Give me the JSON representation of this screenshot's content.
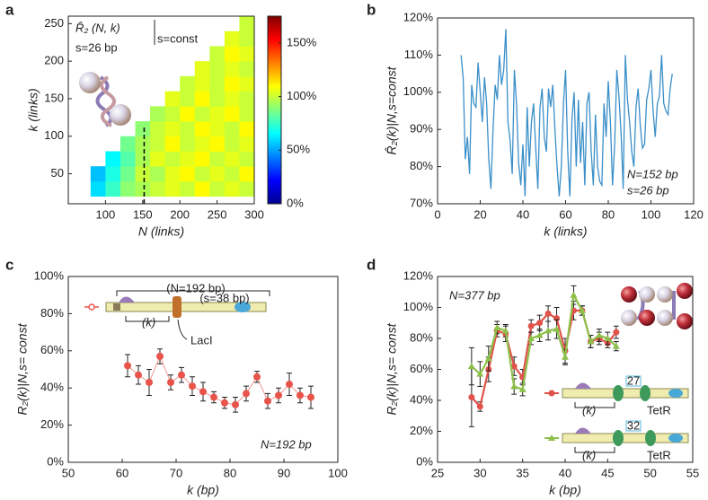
{
  "chart_data": [
    {
      "type": "heatmap",
      "panel": "a",
      "xlabel": "N (links)",
      "ylabel": "k (links)",
      "annotations": [
        "R̂₂ (N, k)",
        "s=const",
        "s=26 bp"
      ],
      "x": [
        90,
        110,
        130,
        150,
        170,
        190,
        210,
        230,
        250,
        270,
        290
      ],
      "y": [
        30,
        50,
        70,
        90,
        110,
        130,
        150,
        170,
        190,
        210,
        230,
        250
      ],
      "z": [
        [
          60,
          75,
          90,
          95,
          100,
          105,
          100,
          110,
          100,
          105,
          100
        ],
        [
          55,
          70,
          85,
          100,
          95,
          105,
          110,
          100,
          105,
          100,
          110
        ],
        [
          null,
          65,
          80,
          95,
          105,
          100,
          105,
          110,
          100,
          105,
          100
        ],
        [
          null,
          null,
          85,
          95,
          100,
          110,
          100,
          105,
          110,
          100,
          105
        ],
        [
          null,
          null,
          null,
          90,
          100,
          105,
          100,
          110,
          105,
          100,
          110
        ],
        [
          null,
          null,
          null,
          null,
          95,
          100,
          110,
          100,
          105,
          110,
          100
        ],
        [
          null,
          null,
          null,
          null,
          null,
          105,
          100,
          110,
          100,
          105,
          100
        ],
        [
          null,
          null,
          null,
          null,
          null,
          null,
          100,
          105,
          100,
          110,
          105
        ],
        [
          null,
          null,
          null,
          null,
          null,
          null,
          null,
          105,
          100,
          105,
          100
        ],
        [
          null,
          null,
          null,
          null,
          null,
          null,
          null,
          null,
          100,
          110,
          105
        ],
        [
          null,
          null,
          null,
          null,
          null,
          null,
          null,
          null,
          null,
          105,
          100
        ],
        [
          null,
          null,
          null,
          null,
          null,
          null,
          null,
          null,
          null,
          null,
          100
        ]
      ],
      "colormap": "jet",
      "vline": 152,
      "xlim": [
        50,
        300
      ],
      "xticks": [
        100,
        150,
        200,
        250,
        300
      ],
      "ylim": [
        10,
        260
      ],
      "yticks": [
        50,
        100,
        150,
        200,
        250
      ],
      "clim": [
        0,
        175
      ],
      "cticks": [
        {
          "value": 0,
          "label": "0%"
        },
        {
          "value": 50,
          "label": "50%"
        },
        {
          "value": 100,
          "label": "100%"
        },
        {
          "value": 150,
          "label": "150%"
        }
      ]
    },
    {
      "type": "line",
      "panel": "b",
      "xlabel": "k (links)",
      "ylabel": "R̂₂(k)|N,s=const",
      "annotations": [
        "N=152 bp",
        "s=26 bp"
      ],
      "x": [
        11,
        12,
        13,
        14,
        15,
        16,
        17,
        18,
        19,
        20,
        21,
        22,
        23,
        24,
        25,
        26,
        27,
        28,
        29,
        30,
        31,
        32,
        33,
        34,
        35,
        36,
        37,
        38,
        39,
        40,
        41,
        42,
        43,
        44,
        45,
        46,
        47,
        48,
        49,
        50,
        51,
        52,
        53,
        54,
        55,
        56,
        57,
        58,
        59,
        60,
        61,
        62,
        63,
        64,
        65,
        66,
        67,
        68,
        69,
        70,
        71,
        72,
        73,
        74,
        75,
        76,
        77,
        78,
        79,
        80,
        81,
        82,
        83,
        84,
        85,
        86,
        87,
        88,
        89,
        90,
        91,
        92,
        93,
        94,
        95,
        96,
        97,
        98,
        99,
        100,
        101,
        102,
        103,
        104,
        105,
        106,
        107,
        108,
        109,
        110
      ],
      "series": [
        {
          "color": "#3b8fc9",
          "values": [
            110,
            104,
            82,
            88,
            78,
            102,
            97,
            96,
            108,
            100,
            92,
            104,
            97,
            82,
            74,
            90,
            102,
            98,
            110,
            102,
            106,
            117,
            92,
            87,
            78,
            106,
            97,
            81,
            75,
            86,
            72,
            96,
            80,
            92,
            97,
            85,
            74,
            96,
            101,
            88,
            84,
            101,
            96,
            102,
            90,
            80,
            72,
            80,
            97,
            106,
            84,
            72,
            93,
            100,
            80,
            98,
            81,
            92,
            75,
            97,
            100,
            84,
            75,
            94,
            80,
            76,
            75,
            97,
            88,
            103,
            92,
            75,
            86,
            106,
            99,
            89,
            74,
            110,
            98,
            92,
            84,
            80,
            96,
            101,
            91,
            85,
            86,
            98,
            101,
            106,
            95,
            88,
            97,
            99,
            110,
            97,
            95,
            94,
            101,
            105
          ]
        }
      ],
      "xlim": [
        0,
        120
      ],
      "xticks": [
        0,
        20,
        40,
        60,
        80,
        100,
        120
      ],
      "ylim": [
        70,
        120
      ],
      "yticks": [
        {
          "value": 70,
          "label": "70%"
        },
        {
          "value": 80,
          "label": "80%"
        },
        {
          "value": 90,
          "label": "90%"
        },
        {
          "value": 100,
          "label": "100%"
        },
        {
          "value": 110,
          "label": "110%"
        },
        {
          "value": 120,
          "label": "120%"
        }
      ]
    },
    {
      "type": "scatter",
      "panel": "c",
      "xlabel": "k (bp)",
      "ylabel": "R₂(k)|N,s= const",
      "annotations": [
        "N=192 bp",
        "(N=192 bp)",
        "(s=38 bp)",
        "(k)",
        "LacI"
      ],
      "x": [
        61,
        63,
        65,
        67,
        69,
        71,
        73,
        75,
        77,
        79,
        81,
        83,
        85,
        87,
        89,
        91,
        93,
        95
      ],
      "values": [
        52,
        47,
        43,
        57,
        43,
        47,
        41,
        38,
        35,
        32,
        31,
        37,
        46,
        33,
        36,
        42,
        36,
        35
      ],
      "errors": [
        6,
        5,
        7,
        4,
        4,
        4,
        5,
        5,
        3,
        3,
        4,
        4,
        3,
        4,
        4,
        6,
        4,
        6
      ],
      "color": "#e8534a",
      "xlim": [
        50,
        100
      ],
      "xticks": [
        50,
        60,
        70,
        80,
        90,
        100
      ],
      "ylim": [
        0,
        100
      ],
      "yticks": [
        {
          "value": 0,
          "label": "0%"
        },
        {
          "value": 20,
          "label": "20%"
        },
        {
          "value": 40,
          "label": "40%"
        },
        {
          "value": 60,
          "label": "60%"
        },
        {
          "value": 80,
          "label": "80%"
        },
        {
          "value": 100,
          "label": "100%"
        }
      ]
    },
    {
      "type": "line",
      "panel": "d",
      "xlabel": "k (bp)",
      "ylabel": "R₂(k)|N,s= const",
      "annotations": [
        "N=377 bp",
        "(k)",
        "TetR",
        "(k)",
        "TetR"
      ],
      "x": [
        29,
        30,
        31,
        32,
        33,
        34,
        35,
        36,
        37,
        38,
        39,
        40,
        41,
        42,
        43,
        44,
        45,
        46
      ],
      "series": [
        {
          "name": "27",
          "color": "#e0524a",
          "marker": "circle",
          "values": [
            42,
            36,
            60,
            85,
            83,
            62,
            55,
            88,
            90,
            96,
            93,
            72,
            98,
            98,
            78,
            80,
            77,
            84
          ],
          "errors": [
            19,
            3,
            8,
            4,
            5,
            6,
            5,
            4,
            5,
            5,
            7,
            8,
            6,
            3,
            4,
            4,
            3,
            4
          ]
        },
        {
          "name": "32",
          "color": "#8dc04a",
          "marker": "triangle",
          "values": [
            62,
            57,
            67,
            87,
            85,
            49,
            47,
            80,
            82,
            85,
            86,
            68,
            108,
            98,
            78,
            82,
            80,
            75
          ],
          "errors": [
            12,
            8,
            8,
            4,
            4,
            5,
            4,
            4,
            4,
            6,
            6,
            5,
            6,
            3,
            4,
            4,
            4,
            3
          ]
        }
      ],
      "xlim": [
        25,
        55
      ],
      "xticks": [
        25,
        30,
        35,
        40,
        45,
        50,
        55
      ],
      "ylim": [
        0,
        120
      ],
      "yticks": [
        {
          "value": 0,
          "label": "0%"
        },
        {
          "value": 20,
          "label": "20%"
        },
        {
          "value": 40,
          "label": "40%"
        },
        {
          "value": 60,
          "label": "60%"
        },
        {
          "value": 80,
          "label": "80%"
        },
        {
          "value": 100,
          "label": "100%"
        },
        {
          "value": 120,
          "label": "120%"
        }
      ]
    }
  ]
}
